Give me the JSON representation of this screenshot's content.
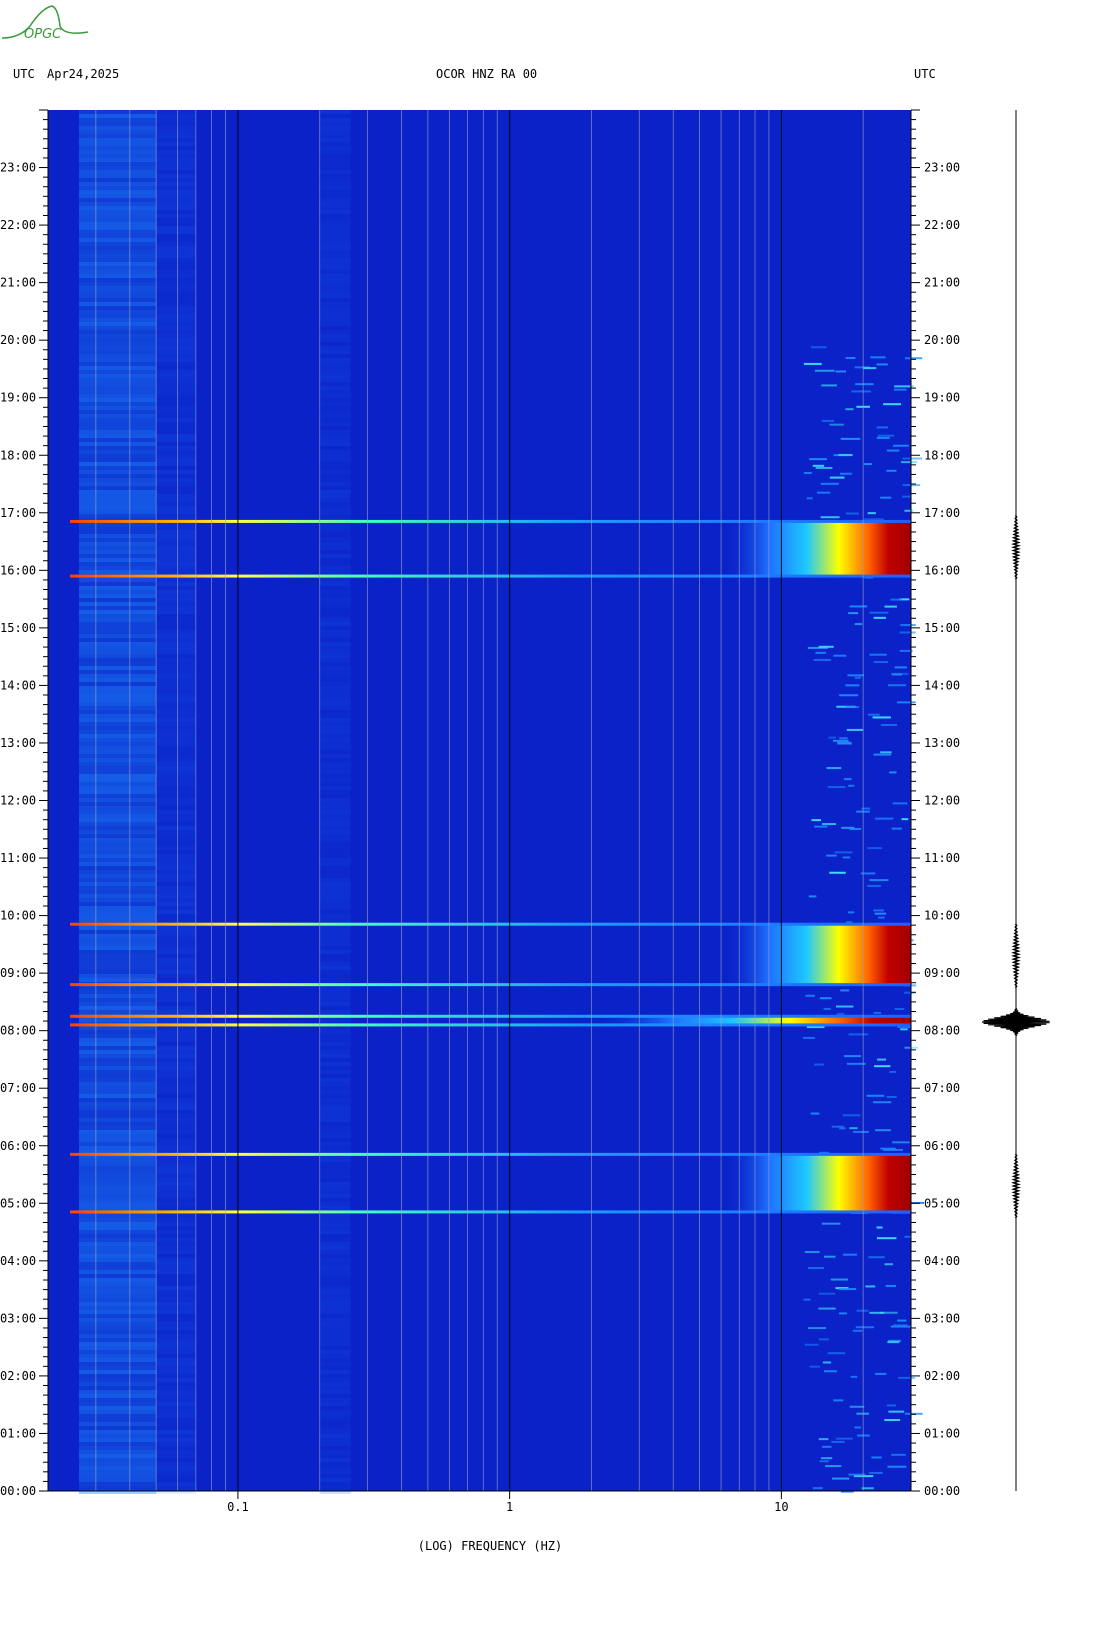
{
  "header": {
    "left_tz": "UTC",
    "date": "Apr24,2025",
    "station": "OCOR HNZ RA 00",
    "right_tz": "UTC"
  },
  "logo": {
    "text": "OPGC",
    "color": "#3a9a3a"
  },
  "colors": {
    "background": "#0a22c8",
    "gridline_minor": "#9aa0c8",
    "gridline_major": "#000000",
    "quake_low": "#1ec8ff",
    "quake_mid": "#ffff00",
    "quake_high": "#a00000"
  },
  "chart_data": {
    "type": "heatmap",
    "title": "OCOR HNZ RA 00",
    "xlabel": "(LOG) FREQUENCY (HZ)",
    "ylabel": "UTC",
    "x_scale": "log",
    "xlim": [
      0.02,
      30
    ],
    "x_ticks": [
      {
        "value": 0.1,
        "label": "0.1"
      },
      {
        "value": 1,
        "label": "1"
      },
      {
        "value": 10,
        "label": "10"
      }
    ],
    "ylim": [
      0,
      24
    ],
    "y_ticks": [
      {
        "value": 0,
        "label": "00:00"
      },
      {
        "value": 1,
        "label": "01:00"
      },
      {
        "value": 2,
        "label": "02:00"
      },
      {
        "value": 3,
        "label": "03:00"
      },
      {
        "value": 4,
        "label": "04:00"
      },
      {
        "value": 5,
        "label": "05:00"
      },
      {
        "value": 6,
        "label": "06:00"
      },
      {
        "value": 7,
        "label": "07:00"
      },
      {
        "value": 8,
        "label": "08:00"
      },
      {
        "value": 9,
        "label": "09:00"
      },
      {
        "value": 10,
        "label": "10:00"
      },
      {
        "value": 11,
        "label": "11:00"
      },
      {
        "value": 12,
        "label": "12:00"
      },
      {
        "value": 13,
        "label": "13:00"
      },
      {
        "value": 14,
        "label": "14:00"
      },
      {
        "value": 15,
        "label": "15:00"
      },
      {
        "value": 16,
        "label": "16:00"
      },
      {
        "value": 17,
        "label": "17:00"
      },
      {
        "value": 18,
        "label": "18:00"
      },
      {
        "value": 19,
        "label": "19:00"
      },
      {
        "value": 20,
        "label": "20:00"
      },
      {
        "value": 21,
        "label": "21:00"
      },
      {
        "value": 22,
        "label": "22:00"
      },
      {
        "value": 23,
        "label": "23:00"
      }
    ],
    "events": [
      {
        "start_hour": 4.85,
        "end_hour": 5.85,
        "onset_freq_hz": 6,
        "intensity": "high"
      },
      {
        "start_hour": 8.1,
        "end_hour": 8.25,
        "onset_freq_hz": 2,
        "intensity": "high"
      },
      {
        "start_hour": 8.8,
        "end_hour": 9.85,
        "onset_freq_hz": 6,
        "intensity": "high"
      },
      {
        "start_hour": 15.9,
        "end_hour": 16.85,
        "onset_freq_hz": 6,
        "intensity": "high"
      }
    ],
    "seismogram_bursts": [
      {
        "hour": 5.3,
        "amplitude": "small"
      },
      {
        "hour": 8.15,
        "amplitude": "large"
      },
      {
        "hour": 9.3,
        "amplitude": "small"
      },
      {
        "hour": 16.4,
        "amplitude": "small"
      }
    ]
  }
}
